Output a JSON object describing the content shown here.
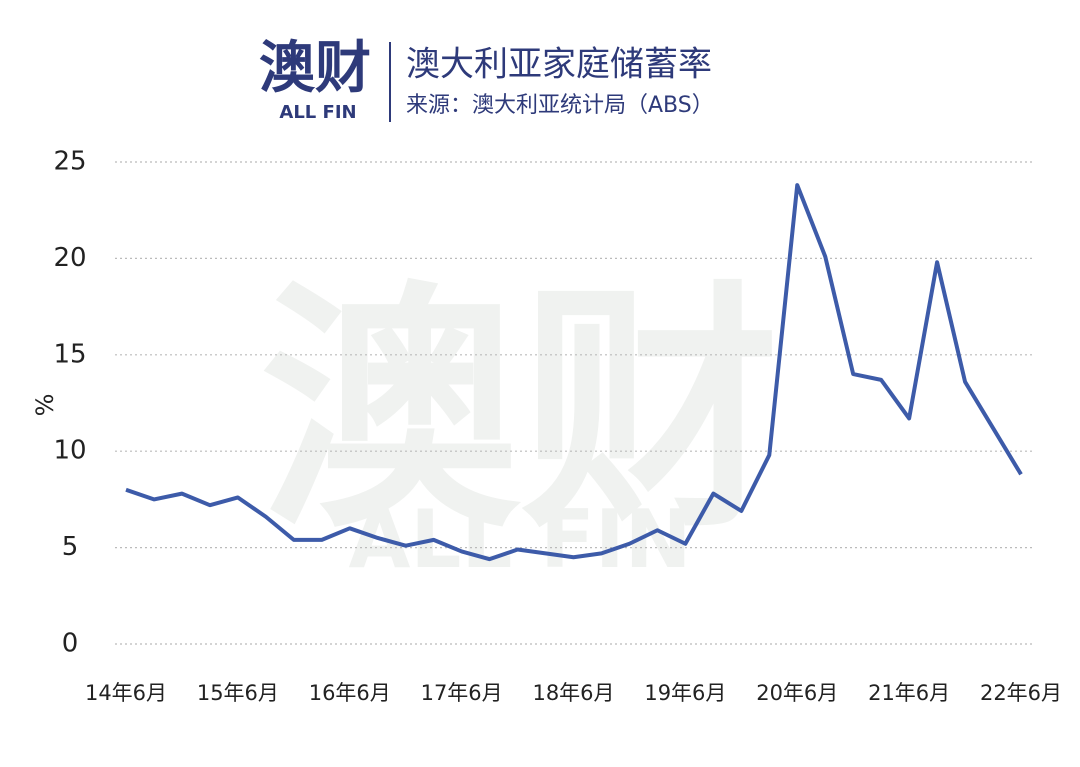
{
  "chart_data": {
    "type": "line",
    "logo": "澳财",
    "logo_sub": "ALL FIN",
    "title": "澳大利亚家庭储蓄率",
    "subtitle": "来源：澳大利亚统计局（ABS）",
    "y_label": "%",
    "categories": [
      "14年6月",
      null,
      null,
      null,
      "15年6月",
      null,
      null,
      null,
      "16年6月",
      null,
      null,
      null,
      "17年6月",
      null,
      null,
      null,
      "18年6月",
      null,
      null,
      null,
      "19年6月",
      null,
      null,
      null,
      "20年6月",
      null,
      null,
      null,
      "21年6月",
      null,
      null,
      null,
      "22年6月"
    ],
    "series": [
      {
        "name": "家庭储蓄率",
        "color": "#3d5ba9",
        "values": [
          8.0,
          7.5,
          7.8,
          7.2,
          7.6,
          6.6,
          5.4,
          5.4,
          6.0,
          5.5,
          5.1,
          5.4,
          4.8,
          4.4,
          4.9,
          4.7,
          4.5,
          4.7,
          5.2,
          5.9,
          5.2,
          7.8,
          6.9,
          9.8,
          23.8,
          20.1,
          14.0,
          13.7,
          11.7,
          19.8,
          13.6,
          11.2,
          8.8
        ]
      }
    ],
    "ylim": [
      0,
      25
    ],
    "yticks": [
      0,
      5,
      10,
      15,
      20,
      25
    ],
    "grid": true
  }
}
